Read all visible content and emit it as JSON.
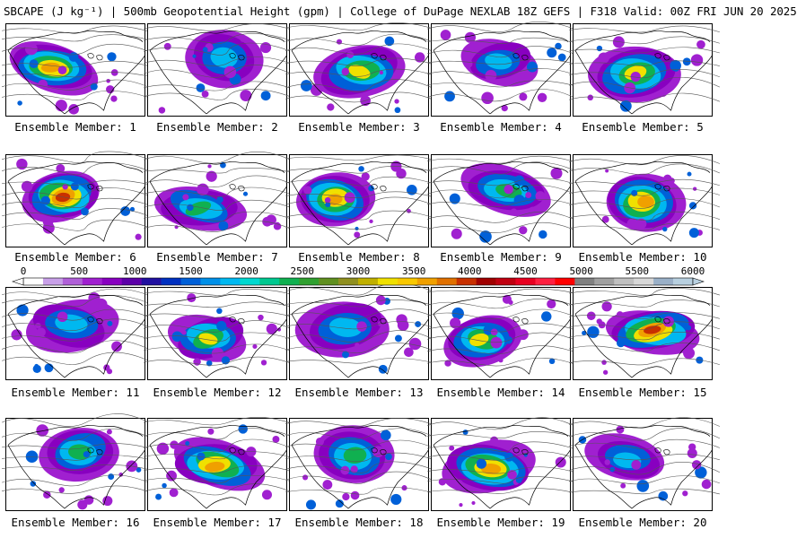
{
  "title": "SBCAPE (J kg⁻¹) | 500mb Geopotential Height (gpm) | College of DuPage NEXLAB 18Z GEFS | F318 Valid: 00Z FRI JUN 20 2025",
  "panel_label_prefix": "Ensemble Member: ",
  "members": [
    1,
    2,
    3,
    4,
    5,
    6,
    7,
    8,
    9,
    10,
    11,
    12,
    13,
    14,
    15,
    16,
    17,
    18,
    19,
    20
  ],
  "colorbar": {
    "ticks": [
      "0",
      "500",
      "1000",
      "1500",
      "2000",
      "2500",
      "3000",
      "3500",
      "4000",
      "4500",
      "5000",
      "5500",
      "6000"
    ],
    "colors": [
      "#ffffff",
      "#c8a0e8",
      "#b060d8",
      "#a020d0",
      "#8800c0",
      "#5c00a8",
      "#2010a0",
      "#0030c0",
      "#0060d8",
      "#0090e8",
      "#00b8f0",
      "#00d8d0",
      "#00c890",
      "#10b050",
      "#30a030",
      "#609020",
      "#909020",
      "#c0b000",
      "#f0e000",
      "#f8c800",
      "#f0a000",
      "#e07000",
      "#c83000",
      "#a00000",
      "#c00010",
      "#e80020",
      "#ff2040",
      "#ff0000",
      "#808080",
      "#a0a0a0",
      "#c0c0c0",
      "#d8d8d8",
      "#9ab0c8",
      "#b8d0e0"
    ]
  }
}
